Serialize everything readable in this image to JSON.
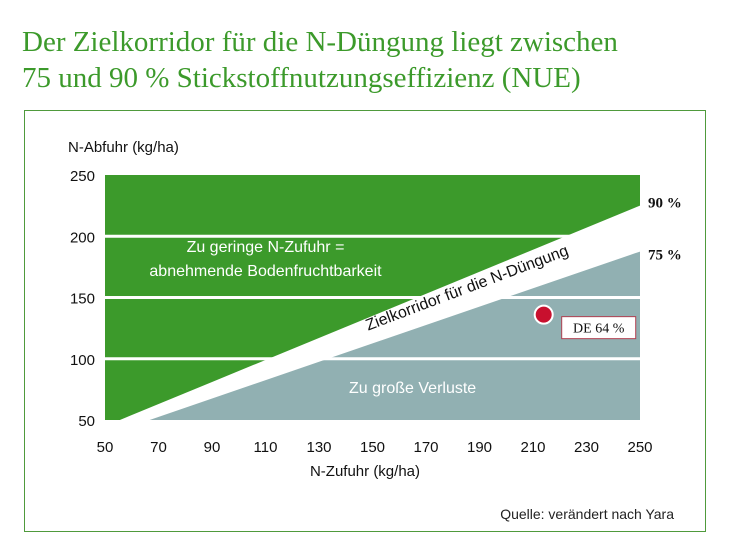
{
  "title_line1": "Der Zielkorridor für die N-Düngung liegt zwischen",
  "title_line2": "75 und 90 % Stickstoffnutzungseffizienz (NUE)",
  "source": "Quelle: verändert nach Yara",
  "colors": {
    "green": "#3c9a2b",
    "gray": "#91b0b2",
    "corridor": "#ffffff",
    "point": "#c8102e",
    "title": "#3c9a2b"
  },
  "chart_data": {
    "type": "area",
    "title": "Der Zielkorridor für die N-Düngung liegt zwischen 75 und 90 % Stickstoffnutzungseffizienz (NUE)",
    "xlabel": "N-Zufuhr (kg/ha)",
    "ylabel": "N-Abfuhr (kg/ha)",
    "xlim": [
      50,
      250
    ],
    "ylim": [
      50,
      250
    ],
    "x_ticks": [
      50,
      70,
      90,
      110,
      130,
      150,
      170,
      190,
      210,
      230,
      250
    ],
    "y_ticks": [
      50,
      100,
      150,
      200,
      250
    ],
    "grid": true,
    "lines": [
      {
        "name": "90 %",
        "slope": 0.9
      },
      {
        "name": "75 %",
        "slope": 0.75
      }
    ],
    "regions": [
      {
        "name": "too_little",
        "label_lines": [
          "Zu geringe N-Zufuhr =",
          "abnehmende Bodenfruchtbarkeit"
        ],
        "label_at": [
          110,
          187
        ]
      },
      {
        "name": "corridor",
        "label": "Zielkorridor für die N-Düngung",
        "label_at": [
          186,
          154
        ]
      },
      {
        "name": "losses",
        "label": "Zu große Verluste",
        "label_at": [
          165,
          72
        ]
      }
    ],
    "points": [
      {
        "label": "DE 64 %",
        "x": 214,
        "y": 136
      }
    ]
  }
}
